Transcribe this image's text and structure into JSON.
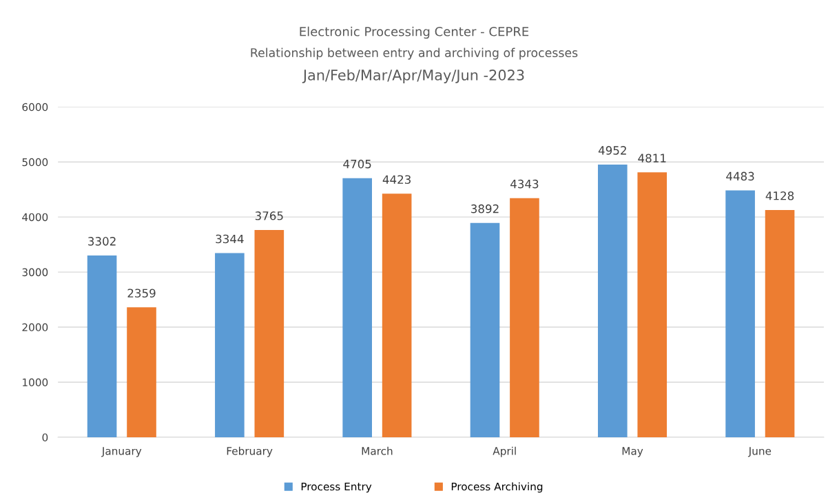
{
  "chart_data": {
    "type": "bar",
    "title": "Electronic Processing Center - CEPRE",
    "subtitle": "Relationship between entry and archiving of processes\nJan/Feb/Mar/Apr/May/Jun -2023",
    "categories": [
      "January",
      "February",
      "March",
      "April",
      "May",
      "June"
    ],
    "series": [
      {
        "name": "Process Entry",
        "color": "#5b9bd5",
        "values": [
          3302,
          3344,
          4705,
          3892,
          4952,
          4483
        ]
      },
      {
        "name": "Process Archiving",
        "color": "#ed7d31",
        "values": [
          2359,
          3765,
          4423,
          4343,
          4811,
          4128
        ]
      }
    ],
    "ylim": [
      0,
      6000
    ],
    "yticks": [
      0,
      1000,
      2000,
      3000,
      4000,
      5000,
      6000
    ],
    "grid": "y",
    "legend": "bottom",
    "data_labels": true
  }
}
